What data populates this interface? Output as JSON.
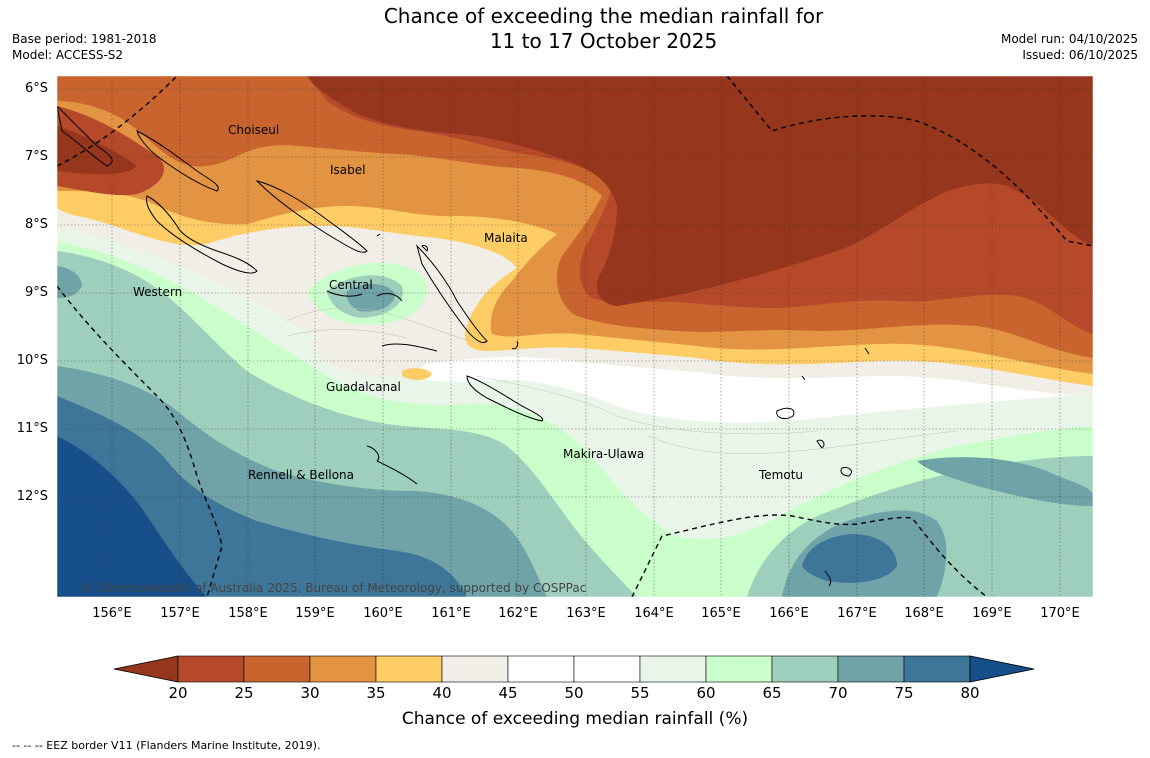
{
  "title_line1": "Chance of exceeding the median rainfall for",
  "title_line2": "11 to 17 October 2025",
  "meta_left": [
    "Base period: 1981-2018",
    "Model: ACCESS-S2"
  ],
  "meta_right": [
    "Model run: 04/10/2025",
    "Issued: 06/10/2025"
  ],
  "lat_labels": [
    "6°S",
    "7°S",
    "8°S",
    "9°S",
    "10°S",
    "11°S",
    "12°S"
  ],
  "lon_labels": [
    "156°E",
    "157°E",
    "158°E",
    "159°E",
    "160°E",
    "161°E",
    "162°E",
    "163°E",
    "164°E",
    "165°E",
    "166°E",
    "167°E",
    "168°E",
    "169°E",
    "170°E"
  ],
  "places": [
    "Choiseul",
    "Isabel",
    "Malaita",
    "Western",
    "Central",
    "Guadalcanal",
    "Makira-Ulawa",
    "Rennell & Bellona",
    "Temotu"
  ],
  "copyright": "© Commonwealth of Australia 2025, Bureau of Meteorology, supported by COSPPac",
  "colorbar": {
    "ticks": [
      "20",
      "25",
      "30",
      "35",
      "40",
      "45",
      "50",
      "55",
      "60",
      "65",
      "70",
      "75",
      "80"
    ],
    "colors": [
      "#96361c",
      "#b5492a",
      "#c9642f",
      "#e39443",
      "#ffcd65",
      "#f1ede7",
      "#ffffff",
      "#ffffff",
      "#eaf5ea",
      "#caffcb",
      "#9dcfbc",
      "#6fa3a7",
      "#3d7699",
      "#164f8a"
    ],
    "label": "Chance of exceeding median rainfall (%)"
  },
  "footnote": "--  --  -- EEZ border V11 (Flanders Marine Institute, 2019)."
}
